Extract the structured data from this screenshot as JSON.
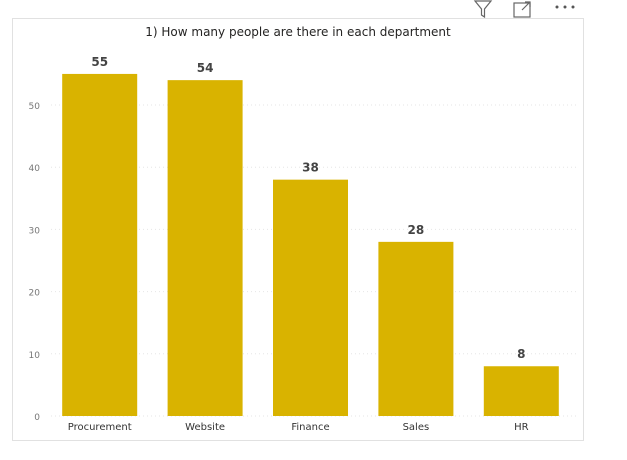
{
  "toolbar": {
    "filter_icon": "filter-icon",
    "focus_icon": "focus-mode-icon",
    "more_icon": "more-options-icon"
  },
  "chart_data": {
    "type": "bar",
    "title": "1) How many people are there in each department",
    "categories": [
      "Procurement",
      "Website",
      "Finance",
      "Sales",
      "HR"
    ],
    "values": [
      55,
      54,
      38,
      28,
      8
    ],
    "data_labels": [
      "55",
      "54",
      "38",
      "28",
      "8"
    ],
    "y_ticks": [
      0,
      10,
      20,
      30,
      40,
      50
    ],
    "ylim": [
      0,
      57.4
    ],
    "grid": true,
    "bar_color": "#D9B300",
    "grid_color": "#E6E6E6"
  }
}
